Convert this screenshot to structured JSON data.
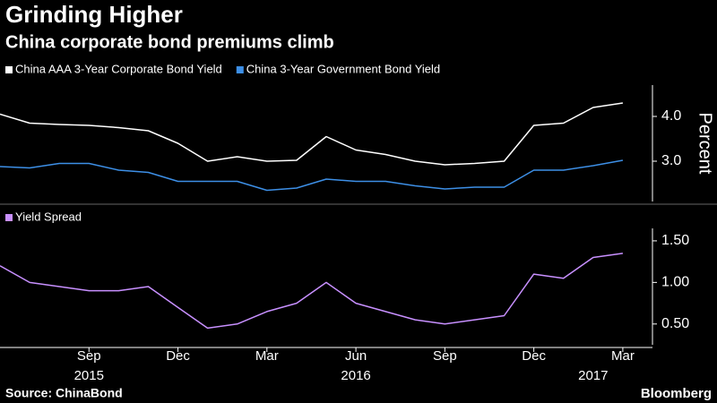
{
  "title": "Grinding Higher",
  "subtitle": "China corporate bond premiums climb",
  "source": "Source: ChinaBond",
  "logo": "Bloomberg",
  "chart_data": [
    {
      "type": "line",
      "x": [
        "2015-06",
        "2015-07",
        "2015-08",
        "2015-09",
        "2015-10",
        "2015-11",
        "2015-12",
        "2016-01",
        "2016-02",
        "2016-03",
        "2016-04",
        "2016-05",
        "2016-06",
        "2016-07",
        "2016-08",
        "2016-09",
        "2016-10",
        "2016-11",
        "2016-12",
        "2017-01",
        "2017-02",
        "2017-03"
      ],
      "xlim": [
        "2015-06",
        "2017-04"
      ],
      "series": [
        {
          "name": "China AAA 3-Year Corporate Bond Yield",
          "color": "#ffffff",
          "values": [
            4.05,
            3.85,
            3.82,
            3.8,
            3.75,
            3.68,
            3.4,
            3.0,
            3.1,
            3.0,
            3.02,
            3.55,
            3.25,
            3.15,
            3.0,
            2.92,
            2.95,
            3.0,
            3.8,
            3.85,
            4.2,
            4.3
          ]
        },
        {
          "name": "China 3-Year Government Bond Yield",
          "color": "#3d8fe6",
          "values": [
            2.88,
            2.85,
            2.95,
            2.95,
            2.8,
            2.75,
            2.55,
            2.55,
            2.55,
            2.35,
            2.4,
            2.6,
            2.55,
            2.55,
            2.45,
            2.38,
            2.42,
            2.42,
            2.8,
            2.8,
            2.9,
            3.02
          ]
        }
      ],
      "ylim": [
        2.1,
        4.7
      ],
      "yticks": [
        {
          "value": 3,
          "label": "3.0"
        },
        {
          "value": 4,
          "label": "4.0"
        }
      ],
      "ylabel": "Percent",
      "grid": false
    },
    {
      "type": "line",
      "x": [
        "2015-06",
        "2015-07",
        "2015-08",
        "2015-09",
        "2015-10",
        "2015-11",
        "2015-12",
        "2016-01",
        "2016-02",
        "2016-03",
        "2016-04",
        "2016-05",
        "2016-06",
        "2016-07",
        "2016-08",
        "2016-09",
        "2016-10",
        "2016-11",
        "2016-12",
        "2017-01",
        "2017-02",
        "2017-03"
      ],
      "xlim": [
        "2015-06",
        "2017-04"
      ],
      "series": [
        {
          "name": "Yield Spread",
          "color": "#c890ff",
          "values": [
            1.2,
            1.0,
            0.95,
            0.9,
            0.9,
            0.95,
            0.7,
            0.45,
            0.5,
            0.65,
            0.75,
            1.0,
            0.75,
            0.65,
            0.55,
            0.5,
            0.55,
            0.6,
            1.1,
            1.05,
            1.3,
            1.35
          ]
        }
      ],
      "ylim": [
        0.25,
        1.65
      ],
      "yticks": [
        {
          "value": 0.5,
          "label": "0.50"
        },
        {
          "value": 1,
          "label": "1.00"
        },
        {
          "value": 1.5,
          "label": "1.50"
        }
      ],
      "xticks": [
        {
          "value": "2015-09",
          "label": "Sep"
        },
        {
          "value": "2015-12",
          "label": "Dec"
        },
        {
          "value": "2016-03",
          "label": "Mar"
        },
        {
          "value": "2016-06",
          "label": "Jun"
        },
        {
          "value": "2016-09",
          "label": "Sep"
        },
        {
          "value": "2016-12",
          "label": "Dec"
        },
        {
          "value": "2017-03",
          "label": "Mar"
        }
      ],
      "xtick_groups": [
        {
          "value": "2015-09",
          "label": "2015"
        },
        {
          "value": "2016-06",
          "label": "2016"
        },
        {
          "value": "2017-02",
          "label": "2017"
        }
      ],
      "grid": false
    }
  ]
}
